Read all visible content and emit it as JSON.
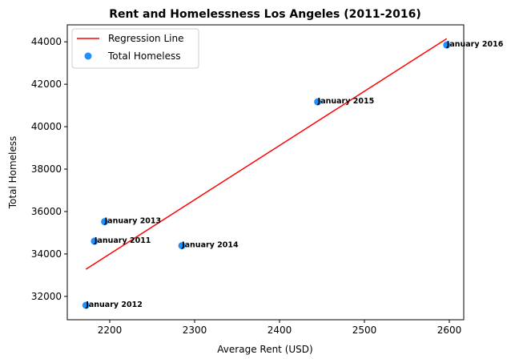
{
  "chart_data": {
    "type": "scatter",
    "title": "Rent and Homelessness Los Angeles (2011-2016)",
    "xlabel": "Average Rent (USD)",
    "ylabel": "Total Homeless",
    "xlim": [
      2150,
      2617
    ],
    "ylim": [
      30900,
      44800
    ],
    "xticks": [
      2200,
      2300,
      2400,
      2500,
      2600
    ],
    "yticks": [
      32000,
      34000,
      36000,
      38000,
      40000,
      42000,
      44000
    ],
    "grid": false,
    "legend_position": "top-left",
    "series": [
      {
        "name": "Total Homeless",
        "kind": "scatter",
        "color": "#1e90ff",
        "points": [
          {
            "label": "January 2011",
            "x": 2182,
            "y": 34600
          },
          {
            "label": "January 2012",
            "x": 2172,
            "y": 31580
          },
          {
            "label": "January 2013",
            "x": 2194,
            "y": 35520
          },
          {
            "label": "January 2014",
            "x": 2285,
            "y": 34390
          },
          {
            "label": "January 2015",
            "x": 2445,
            "y": 41170
          },
          {
            "label": "January 2016",
            "x": 2597,
            "y": 43850
          }
        ]
      },
      {
        "name": "Regression Line",
        "kind": "line",
        "color": "#ff0000",
        "points": [
          {
            "x": 2172,
            "y": 33280
          },
          {
            "x": 2597,
            "y": 44150
          }
        ]
      }
    ]
  }
}
